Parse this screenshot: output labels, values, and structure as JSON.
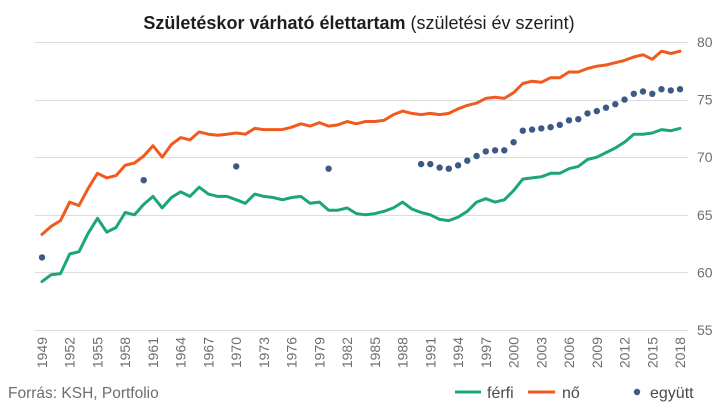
{
  "chart_data": {
    "type": "line",
    "title": "Születéskor várható élettartam",
    "title_note": "(születési év szerint)",
    "xlabel": "",
    "ylabel": "",
    "xlim": [
      1949,
      2018
    ],
    "ylim": [
      55,
      80
    ],
    "y_ticks": [
      55,
      60,
      65,
      70,
      75,
      80
    ],
    "x_ticks": [
      "1949",
      "1952",
      "1955",
      "1958",
      "1961",
      "1964",
      "1967",
      "1970",
      "1973",
      "1976",
      "1979",
      "1982",
      "1985",
      "1988",
      "1991",
      "1994",
      "1997",
      "2000",
      "2003",
      "2006",
      "2009",
      "2012",
      "2015",
      "2018"
    ],
    "y_axis_position": "right",
    "grid": true,
    "legend_position": "bottom-right",
    "x": [
      1949,
      1950,
      1951,
      1952,
      1953,
      1954,
      1955,
      1956,
      1957,
      1958,
      1959,
      1960,
      1961,
      1962,
      1963,
      1964,
      1965,
      1966,
      1967,
      1968,
      1969,
      1970,
      1971,
      1972,
      1973,
      1974,
      1975,
      1976,
      1977,
      1978,
      1979,
      1980,
      1981,
      1982,
      1983,
      1984,
      1985,
      1986,
      1987,
      1988,
      1989,
      1990,
      1991,
      1992,
      1993,
      1994,
      1995,
      1996,
      1997,
      1998,
      1999,
      2000,
      2001,
      2002,
      2003,
      2004,
      2005,
      2006,
      2007,
      2008,
      2009,
      2010,
      2011,
      2012,
      2013,
      2014,
      2015,
      2016,
      2017,
      2018
    ],
    "series": [
      {
        "name": "férfi",
        "type": "line",
        "color": "#1aa67a",
        "values": [
          59.2,
          59.8,
          59.9,
          61.6,
          61.8,
          63.4,
          64.7,
          63.5,
          63.9,
          65.2,
          65.0,
          65.9,
          66.6,
          65.6,
          66.5,
          67.0,
          66.6,
          67.4,
          66.8,
          66.6,
          66.6,
          66.3,
          66.0,
          66.8,
          66.6,
          66.5,
          66.3,
          66.5,
          66.6,
          66.0,
          66.1,
          65.4,
          65.4,
          65.6,
          65.1,
          65.0,
          65.1,
          65.3,
          65.6,
          66.1,
          65.5,
          65.2,
          65.0,
          64.6,
          64.5,
          64.8,
          65.3,
          66.1,
          66.4,
          66.1,
          66.3,
          67.1,
          68.1,
          68.2,
          68.3,
          68.6,
          68.6,
          69.0,
          69.2,
          69.8,
          70.0,
          70.4,
          70.8,
          71.3,
          72.0,
          72.0,
          72.1,
          72.4,
          72.3,
          72.5
        ]
      },
      {
        "name": "nő",
        "type": "line",
        "color": "#f05a1f",
        "values": [
          63.3,
          64.0,
          64.5,
          66.1,
          65.8,
          67.3,
          68.6,
          68.2,
          68.4,
          69.3,
          69.5,
          70.1,
          71.0,
          70.0,
          71.1,
          71.7,
          71.5,
          72.2,
          72.0,
          71.9,
          72.0,
          72.1,
          72.0,
          72.5,
          72.4,
          72.4,
          72.4,
          72.6,
          72.9,
          72.7,
          73.0,
          72.7,
          72.8,
          73.1,
          72.9,
          73.1,
          73.1,
          73.2,
          73.7,
          74.0,
          73.8,
          73.7,
          73.8,
          73.7,
          73.8,
          74.2,
          74.5,
          74.7,
          75.1,
          75.2,
          75.1,
          75.6,
          76.4,
          76.6,
          76.5,
          76.9,
          76.9,
          77.4,
          77.4,
          77.7,
          77.9,
          78.0,
          78.2,
          78.4,
          78.7,
          78.9,
          78.5,
          79.2,
          79.0,
          79.2
        ]
      },
      {
        "name": "együtt",
        "type": "scatter",
        "color": "#3d5985",
        "x": [
          1949,
          1960,
          1970,
          1980,
          1990,
          1991,
          1992,
          1993,
          1994,
          1995,
          1996,
          1997,
          1998,
          1999,
          2000,
          2001,
          2002,
          2003,
          2004,
          2005,
          2006,
          2007,
          2008,
          2009,
          2010,
          2011,
          2012,
          2013,
          2014,
          2015,
          2016,
          2017,
          2018
        ],
        "values": [
          61.3,
          68.0,
          69.2,
          69.0,
          69.4,
          69.4,
          69.1,
          69.0,
          69.3,
          69.7,
          70.1,
          70.5,
          70.6,
          70.6,
          71.3,
          72.3,
          72.4,
          72.5,
          72.6,
          72.8,
          73.2,
          73.3,
          73.8,
          74.0,
          74.3,
          74.6,
          75.0,
          75.5,
          75.7,
          75.5,
          75.9,
          75.8,
          75.9
        ]
      }
    ]
  },
  "source": "Forrás: KSH, Portfolio"
}
